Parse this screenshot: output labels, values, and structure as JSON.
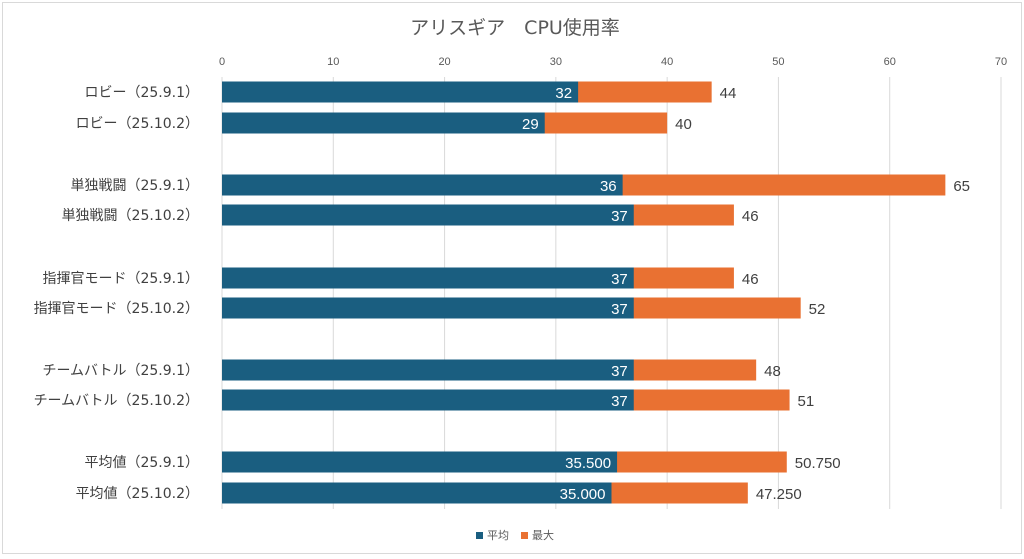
{
  "chart_data": {
    "type": "bar",
    "orientation": "horizontal",
    "overlap": true,
    "title": "アリスギア　CPU使用率",
    "xlabel": "",
    "ylabel": "",
    "xlim": [
      0,
      70
    ],
    "xticks": [
      0,
      10,
      20,
      30,
      40,
      50,
      60,
      70
    ],
    "grid": true,
    "legend_position": "bottom",
    "categories": [
      "ロビー（25.9.1）",
      "ロビー（25.10.2）",
      "単独戦闘（25.9.1）",
      "単独戦闘（25.10.2）",
      "指揮官モード（25.9.1）",
      "指揮官モード（25.10.2）",
      "チームバトル（25.9.1）",
      "チームバトル（25.10.2）",
      "平均値（25.9.1）",
      "平均値（25.10.2）"
    ],
    "groups": [
      [
        0,
        1
      ],
      [
        2,
        3
      ],
      [
        4,
        5
      ],
      [
        6,
        7
      ],
      [
        8,
        9
      ]
    ],
    "series": [
      {
        "name": "平均",
        "color": "#1a5e80",
        "values": [
          32,
          29,
          36,
          37,
          37,
          37,
          37,
          37,
          35.5,
          35.0
        ],
        "labels": [
          "32",
          "29",
          "36",
          "37",
          "37",
          "37",
          "37",
          "37",
          "35.500",
          "35.000"
        ]
      },
      {
        "name": "最大",
        "color": "#e97132",
        "values": [
          44,
          40,
          65,
          46,
          46,
          52,
          48,
          51,
          50.75,
          47.25
        ],
        "labels": [
          "44",
          "40",
          "65",
          "46",
          "46",
          "52",
          "48",
          "51",
          "50.750",
          "47.250"
        ]
      }
    ]
  }
}
